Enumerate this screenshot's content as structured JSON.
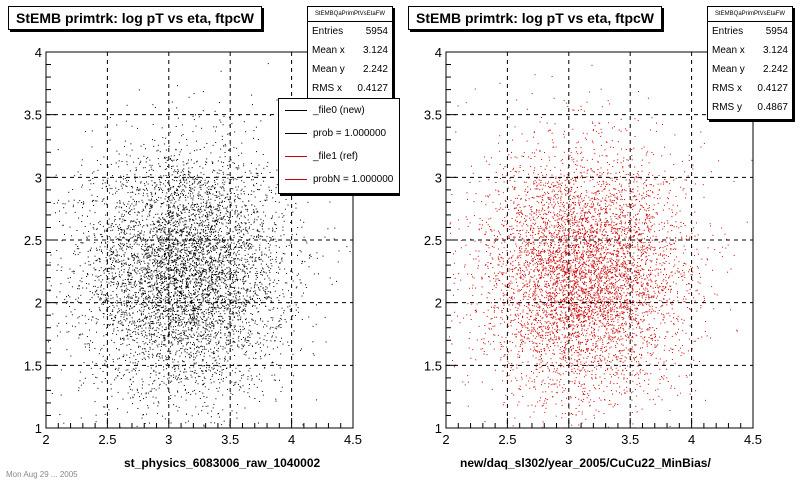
{
  "chart_data": [
    {
      "type": "scatter",
      "title": "StEMB primtrk: log pT vs eta, ftpcW",
      "xlabel": "st_physics_6083006_raw_1040002",
      "xlim": [
        2,
        4.5
      ],
      "ylim": [
        1,
        4
      ],
      "xticks": [
        "2",
        "2.5",
        "3",
        "3.5",
        "4",
        "4.5"
      ],
      "yticks": [
        "1",
        "1.5",
        "2",
        "2.5",
        "3",
        "3.5",
        "4"
      ],
      "grid": true,
      "marker_color": "#000000",
      "points_described_by": {
        "entries": 5954,
        "mean_x": 3.124,
        "mean_y": 2.242,
        "rms_x": 0.4127,
        "rms_y": 0.4867
      },
      "stats": {
        "name": "StEMBQaPrimPtVsEtaFW",
        "entries_label": "Entries",
        "entries": "5954",
        "meanx_label": "Mean x",
        "meanx": "3.124",
        "meany_label": "Mean y",
        "meany": "2.242",
        "rmsx_label": "RMS x",
        "rmsx": "0.4127"
      },
      "legend": [
        {
          "label": "_file0 (new)",
          "color": "#000000"
        },
        {
          "label": "prob = 1.000000",
          "color": "#000000"
        },
        {
          "label": "_file1 (ref)",
          "color": "#cc0000"
        },
        {
          "label": "probN = 1.000000",
          "color": "#cc0000"
        }
      ]
    },
    {
      "type": "scatter",
      "title": "StEMB primtrk: log pT vs eta, ftpcW",
      "xlabel": "new/daq_sl302/year_2005/CuCu22_MinBias/",
      "xlim": [
        2,
        4.5
      ],
      "ylim": [
        1,
        4
      ],
      "xticks": [
        "2",
        "2.5",
        "3",
        "3.5",
        "4",
        "4.5"
      ],
      "yticks": [
        "1",
        "1.5",
        "2",
        "2.5",
        "3",
        "3.5",
        "4"
      ],
      "grid": true,
      "marker_color": "#cc0000",
      "points_described_by": {
        "entries": 5954,
        "mean_x": 3.124,
        "mean_y": 2.242,
        "rms_x": 0.4127,
        "rms_y": 0.4867
      },
      "stats": {
        "name": "StEMBQaPrimPtVsEtaFW",
        "entries_label": "Entries",
        "entries": "5954",
        "meanx_label": "Mean x",
        "meanx": "3.124",
        "meany_label": "Mean y",
        "meany": "2.242",
        "rmsx_label": "RMS x",
        "rmsx": "0.4127",
        "rmsy_label": "RMS y",
        "rmsy": "0.4867"
      }
    }
  ],
  "footer": "Mon Aug 29 ... 2005"
}
